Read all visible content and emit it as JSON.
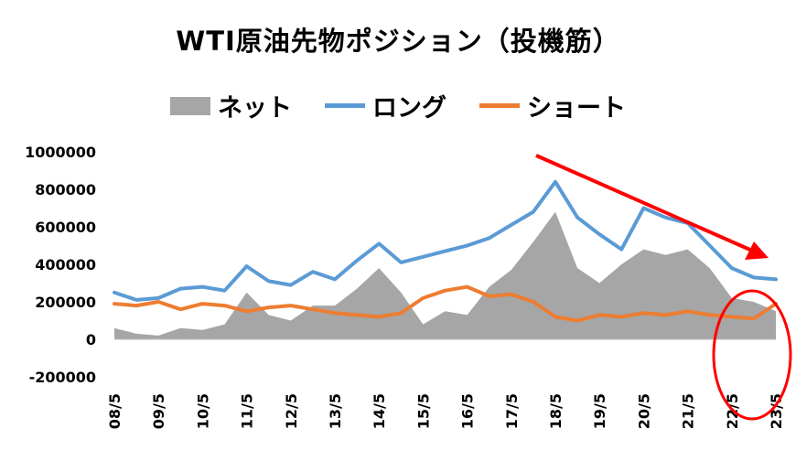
{
  "chart_data": {
    "type": "line",
    "title": "WTI原油先物ポジション（投機筋）",
    "ylim": [
      -200000,
      1000000
    ],
    "y_ticks": [
      "1000000",
      "800000",
      "600000",
      "400000",
      "200000",
      "0",
      "-200000"
    ],
    "y_tick_values": [
      1000000,
      800000,
      600000,
      400000,
      200000,
      0,
      -200000
    ],
    "x_ticks": [
      "08/5",
      "09/5",
      "10/5",
      "11/5",
      "12/5",
      "13/5",
      "14/5",
      "15/5",
      "16/5",
      "17/5",
      "18/5",
      "19/5",
      "20/5",
      "21/5",
      "22/5",
      "23/5"
    ],
    "x": [
      "08/5",
      "08/11",
      "09/5",
      "09/11",
      "10/5",
      "10/11",
      "11/5",
      "11/11",
      "12/5",
      "12/11",
      "13/5",
      "13/11",
      "14/5",
      "14/11",
      "15/5",
      "15/11",
      "16/5",
      "16/11",
      "17/5",
      "17/11",
      "18/5",
      "18/11",
      "19/5",
      "19/11",
      "20/5",
      "20/11",
      "21/5",
      "21/11",
      "22/5",
      "22/11",
      "23/5"
    ],
    "series": [
      {
        "name": "ネット",
        "kind": "area",
        "color": "#a6a6a6",
        "values": [
          60000,
          30000,
          20000,
          60000,
          50000,
          80000,
          250000,
          130000,
          100000,
          180000,
          180000,
          270000,
          380000,
          250000,
          80000,
          150000,
          130000,
          280000,
          370000,
          520000,
          680000,
          380000,
          300000,
          400000,
          480000,
          450000,
          480000,
          380000,
          220000,
          200000,
          150000
        ]
      },
      {
        "name": "ロング",
        "kind": "line",
        "color": "#5b9bd5",
        "values": [
          250000,
          210000,
          220000,
          270000,
          280000,
          260000,
          390000,
          310000,
          290000,
          360000,
          320000,
          420000,
          510000,
          410000,
          440000,
          470000,
          500000,
          540000,
          610000,
          680000,
          840000,
          650000,
          560000,
          480000,
          700000,
          650000,
          620000,
          500000,
          380000,
          330000,
          320000
        ]
      },
      {
        "name": "ショート",
        "kind": "line",
        "color": "#ed7d31",
        "values": [
          190000,
          180000,
          200000,
          160000,
          190000,
          180000,
          150000,
          170000,
          180000,
          160000,
          140000,
          130000,
          120000,
          140000,
          220000,
          260000,
          280000,
          230000,
          240000,
          200000,
          120000,
          100000,
          130000,
          120000,
          140000,
          130000,
          150000,
          130000,
          120000,
          110000,
          190000
        ]
      }
    ],
    "legend_placement": "top",
    "grid": false
  }
}
